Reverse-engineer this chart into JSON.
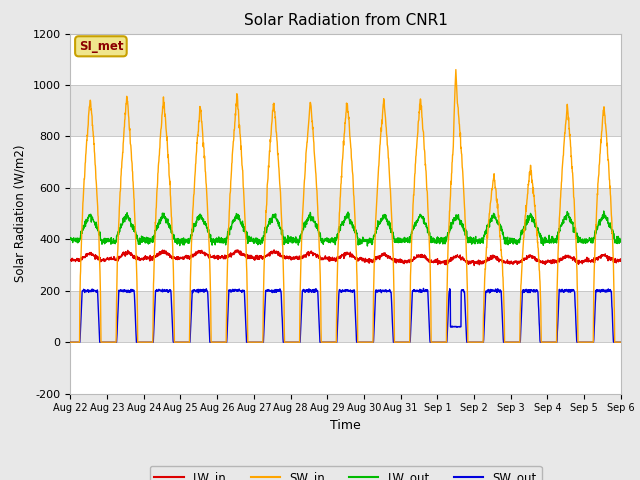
{
  "title": "Solar Radiation from CNR1",
  "xlabel": "Time",
  "ylabel": "Solar Radiation (W/m2)",
  "ylim": [
    -200,
    1200
  ],
  "yticks": [
    -200,
    0,
    200,
    400,
    600,
    800,
    1000,
    1200
  ],
  "fig_facecolor": "#e8e8e8",
  "plot_facecolor": "#f0f0f0",
  "band_light": "#e8e8e8",
  "band_dark": "#d8d8d8",
  "grid_color": "#c8c8c8",
  "annotation_text": "SI_met",
  "annotation_color": "#8b0000",
  "annotation_bg": "#f0e68c",
  "annotation_border": "#c8a000",
  "x_labels": [
    "Aug 22",
    "Aug 23",
    "Aug 24",
    "Aug 25",
    "Aug 26",
    "Aug 27",
    "Aug 28",
    "Aug 29",
    "Aug 30",
    "Aug 31",
    "Sep 1",
    "Sep 2",
    "Sep 3",
    "Sep 4",
    "Sep 5",
    "Sep 6"
  ],
  "lw_in_color": "#dd0000",
  "sw_in_color": "#ffa500",
  "lw_out_color": "#00bb00",
  "sw_out_color": "#0000dd",
  "line_width": 1.0,
  "n_days": 15
}
